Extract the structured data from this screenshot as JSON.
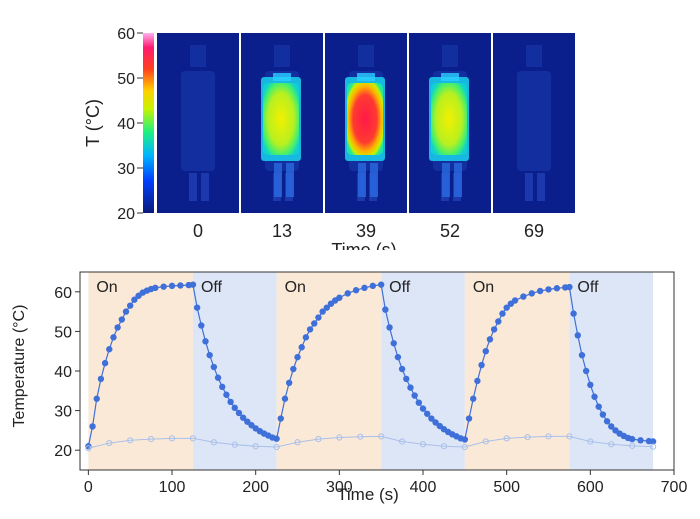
{
  "chart_data": [
    {
      "type": "heatmap",
      "title": "",
      "colorbar": {
        "label": "T (°C)",
        "range": [
          20,
          60
        ],
        "ticks": [
          "60",
          "50",
          "40",
          "30",
          "20"
        ],
        "tick_values": [
          60,
          50,
          40,
          30,
          20
        ]
      },
      "xlabel": "Time (s)",
      "frames": [
        {
          "time": "0",
          "t": 0,
          "intensity": 0
        },
        {
          "time": "13",
          "t": 13,
          "intensity": 0.55
        },
        {
          "time": "39",
          "t": 39,
          "intensity": 1.0
        },
        {
          "time": "52",
          "t": 52,
          "intensity": 0.55
        },
        {
          "time": "69",
          "t": 69,
          "intensity": 0.02
        }
      ],
      "colors": {
        "background": "#0a1f8c",
        "hot": "#ff1a4a",
        "warm": "#ffe600",
        "mid": "#2ef56a",
        "cool": "#00c2ff"
      }
    },
    {
      "type": "scatter",
      "title": "",
      "xlabel": "Time (s)",
      "ylabel": "Temperature (°C)",
      "xlim": [
        -10,
        700
      ],
      "ylim": [
        15,
        65
      ],
      "xticks": [
        0,
        100,
        200,
        300,
        400,
        500,
        600,
        700
      ],
      "yticks": [
        20,
        30,
        40,
        50,
        60
      ],
      "regions": [
        {
          "label": "On",
          "start": 0,
          "end": 125,
          "color": "#fbe9d7"
        },
        {
          "label": "Off",
          "start": 125,
          "end": 225,
          "color": "#dde6f7"
        },
        {
          "label": "On",
          "start": 225,
          "end": 350,
          "color": "#fbe9d7"
        },
        {
          "label": "Off",
          "start": 350,
          "end": 450,
          "color": "#dde6f7"
        },
        {
          "label": "On",
          "start": 450,
          "end": 575,
          "color": "#fbe9d7"
        },
        {
          "label": "Off",
          "start": 575,
          "end": 675,
          "color": "#dde6f7"
        }
      ],
      "series": [
        {
          "color": "#3f6fd8",
          "points": [
            [
              0,
              21
            ],
            [
              5,
              26
            ],
            [
              10,
              33
            ],
            [
              15,
              38
            ],
            [
              20,
              42
            ],
            [
              25,
              45.5
            ],
            [
              30,
              48.5
            ],
            [
              35,
              51
            ],
            [
              40,
              53
            ],
            [
              45,
              55
            ],
            [
              50,
              56.5
            ],
            [
              55,
              58
            ],
            [
              60,
              59
            ],
            [
              65,
              59.8
            ],
            [
              70,
              60.3
            ],
            [
              75,
              60.7
            ],
            [
              80,
              61
            ],
            [
              90,
              61.3
            ],
            [
              100,
              61.5
            ],
            [
              110,
              61.6
            ],
            [
              120,
              61.7
            ],
            [
              125,
              61.8
            ],
            [
              130,
              56
            ],
            [
              135,
              51.5
            ],
            [
              140,
              47.5
            ],
            [
              145,
              44
            ],
            [
              150,
              41
            ],
            [
              155,
              38.3
            ],
            [
              160,
              36
            ],
            [
              165,
              34
            ],
            [
              170,
              32.2
            ],
            [
              175,
              30.7
            ],
            [
              180,
              29.4
            ],
            [
              185,
              28.2
            ],
            [
              190,
              27.2
            ],
            [
              195,
              26.3
            ],
            [
              200,
              25.5
            ],
            [
              205,
              24.8
            ],
            [
              210,
              24.2
            ],
            [
              215,
              23.7
            ],
            [
              220,
              23.2
            ],
            [
              225,
              22.9
            ],
            [
              230,
              28
            ],
            [
              235,
              33
            ],
            [
              240,
              37
            ],
            [
              245,
              40.5
            ],
            [
              250,
              43.5
            ],
            [
              255,
              46
            ],
            [
              260,
              48.5
            ],
            [
              265,
              50.5
            ],
            [
              270,
              52
            ],
            [
              275,
              53.5
            ],
            [
              280,
              55
            ],
            [
              285,
              56
            ],
            [
              290,
              57
            ],
            [
              295,
              57.8
            ],
            [
              300,
              58.5
            ],
            [
              310,
              59.6
            ],
            [
              320,
              60.4
            ],
            [
              330,
              61
            ],
            [
              340,
              61.5
            ],
            [
              350,
              61.8
            ],
            [
              355,
              55.5
            ],
            [
              360,
              51
            ],
            [
              365,
              47
            ],
            [
              370,
              43.5
            ],
            [
              375,
              40.5
            ],
            [
              380,
              38
            ],
            [
              385,
              35.8
            ],
            [
              390,
              33.8
            ],
            [
              395,
              32
            ],
            [
              400,
              30.5
            ],
            [
              405,
              29.2
            ],
            [
              410,
              28
            ],
            [
              415,
              27
            ],
            [
              420,
              26.1
            ],
            [
              425,
              25.3
            ],
            [
              430,
              24.6
            ],
            [
              435,
              24
            ],
            [
              440,
              23.5
            ],
            [
              445,
              23
            ],
            [
              450,
              22.7
            ],
            [
              455,
              28
            ],
            [
              460,
              33
            ],
            [
              465,
              37.5
            ],
            [
              470,
              41.5
            ],
            [
              475,
              45
            ],
            [
              480,
              48
            ],
            [
              485,
              50.5
            ],
            [
              490,
              52.5
            ],
            [
              495,
              54.5
            ],
            [
              500,
              56
            ],
            [
              505,
              57
            ],
            [
              510,
              57.8
            ],
            [
              520,
              58.8
            ],
            [
              530,
              59.6
            ],
            [
              540,
              60.2
            ],
            [
              550,
              60.6
            ],
            [
              560,
              60.9
            ],
            [
              570,
              61.1
            ],
            [
              575,
              61.2
            ],
            [
              580,
              54.5
            ],
            [
              585,
              49
            ],
            [
              590,
              44
            ],
            [
              595,
              40
            ],
            [
              600,
              36.5
            ],
            [
              605,
              33.5
            ],
            [
              610,
              31
            ],
            [
              615,
              29
            ],
            [
              620,
              27.3
            ],
            [
              625,
              26
            ],
            [
              630,
              25
            ],
            [
              635,
              24.2
            ],
            [
              640,
              23.6
            ],
            [
              645,
              23.1
            ],
            [
              650,
              22.8
            ],
            [
              660,
              22.5
            ],
            [
              670,
              22.3
            ],
            [
              675,
              22.2
            ]
          ]
        },
        {
          "color": "#a9c0ea",
          "points": [
            [
              0,
              20.5
            ],
            [
              25,
              21.8
            ],
            [
              50,
              22.5
            ],
            [
              75,
              22.8
            ],
            [
              100,
              23
            ],
            [
              125,
              23
            ],
            [
              150,
              22
            ],
            [
              175,
              21.4
            ],
            [
              200,
              21
            ],
            [
              225,
              20.8
            ],
            [
              250,
              22
            ],
            [
              275,
              22.8
            ],
            [
              300,
              23.2
            ],
            [
              325,
              23.4
            ],
            [
              350,
              23.5
            ],
            [
              375,
              22.2
            ],
            [
              400,
              21.5
            ],
            [
              425,
              21
            ],
            [
              450,
              20.8
            ],
            [
              475,
              22.2
            ],
            [
              500,
              23
            ],
            [
              525,
              23.3
            ],
            [
              550,
              23.5
            ],
            [
              575,
              23.5
            ],
            [
              600,
              22.2
            ],
            [
              625,
              21.5
            ],
            [
              650,
              21.1
            ],
            [
              675,
              20.9
            ]
          ]
        }
      ]
    }
  ]
}
